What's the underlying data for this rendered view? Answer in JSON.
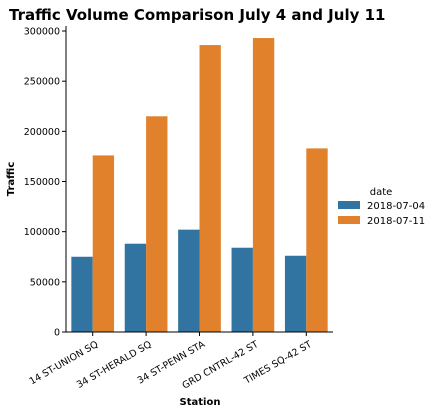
{
  "chart_data": {
    "type": "bar",
    "title": "Traffic Volume Comparison July 4 and July 11",
    "xlabel": "Station",
    "ylabel": "Traffic",
    "categories": [
      "14 ST-UNION SQ",
      "34 ST-HERALD SQ",
      "34 ST-PENN STA",
      "GRD CNTRL-42 ST",
      "TIMES SQ-42 ST"
    ],
    "series": [
      {
        "name": "2018-07-04",
        "color": "#3274a1",
        "values": [
          75000,
          88000,
          102000,
          84000,
          76000
        ]
      },
      {
        "name": "2018-07-11",
        "color": "#e1812c",
        "values": [
          176000,
          215000,
          286000,
          293000,
          183000
        ]
      }
    ],
    "ylim": [
      0,
      305000
    ],
    "yticks": [
      0,
      50000,
      100000,
      150000,
      200000,
      250000,
      300000
    ],
    "yticklabels": [
      "0",
      "50000",
      "100000",
      "150000",
      "200000",
      "250000",
      "300000"
    ],
    "legend": {
      "title": "date",
      "placement": "right"
    },
    "grid": false
  }
}
